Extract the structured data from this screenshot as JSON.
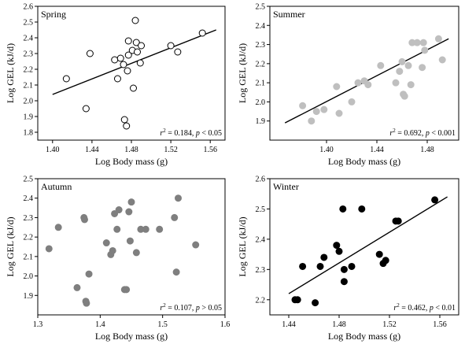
{
  "chart_data": [
    {
      "type": "scatter",
      "title": "Spring",
      "xlabel": "Log Body mass (g)",
      "ylabel": "Log GEL (kJ/d)",
      "xlim": [
        1.385,
        1.575
      ],
      "ylim": [
        1.75,
        2.6
      ],
      "xticks": [
        "1.40",
        "1.44",
        "1.48",
        "1.52",
        "1.56"
      ],
      "yticks": [
        "1.8",
        "1.9",
        "2.0",
        "2.1",
        "2.2",
        "2.3",
        "2.4",
        "2.5",
        "2.6"
      ],
      "marker": {
        "fill": "#ffffff",
        "stroke": "#000000"
      },
      "points": [
        [
          1.414,
          2.14
        ],
        [
          1.434,
          1.95
        ],
        [
          1.438,
          2.3
        ],
        [
          1.463,
          2.26
        ],
        [
          1.466,
          2.14
        ],
        [
          1.469,
          2.27
        ],
        [
          1.472,
          2.23
        ],
        [
          1.473,
          1.88
        ],
        [
          1.475,
          1.84
        ],
        [
          1.476,
          2.19
        ],
        [
          1.477,
          2.29
        ],
        [
          1.477,
          2.38
        ],
        [
          1.481,
          2.32
        ],
        [
          1.482,
          2.08
        ],
        [
          1.484,
          2.51
        ],
        [
          1.485,
          2.37
        ],
        [
          1.486,
          2.31
        ],
        [
          1.489,
          2.24
        ],
        [
          1.49,
          2.35
        ],
        [
          1.52,
          2.35
        ],
        [
          1.527,
          2.31
        ],
        [
          1.552,
          2.43
        ]
      ],
      "trend": [
        [
          1.4,
          2.04
        ],
        [
          1.566,
          2.45
        ]
      ],
      "stat": {
        "r2": "0.184",
        "p": "< 0.05"
      }
    },
    {
      "type": "scatter",
      "title": "Summer",
      "xlabel": "Log Body mass (g)",
      "ylabel": "Log GEL (kJ/d)",
      "xlim": [
        1.355,
        1.505
      ],
      "ylim": [
        1.8,
        2.5
      ],
      "xticks": [
        "1.40",
        "1.44",
        "1.48"
      ],
      "yticks": [
        "1.9",
        "2.0",
        "2.1",
        "2.2",
        "2.3",
        "2.4",
        "2.5"
      ],
      "marker": {
        "fill": "#bfbfbf",
        "stroke": "#bfbfbf"
      },
      "points": [
        [
          1.381,
          1.98
        ],
        [
          1.388,
          1.9
        ],
        [
          1.392,
          1.95
        ],
        [
          1.398,
          1.96
        ],
        [
          1.408,
          2.08
        ],
        [
          1.41,
          1.94
        ],
        [
          1.42,
          2.0
        ],
        [
          1.425,
          2.1
        ],
        [
          1.43,
          2.11
        ],
        [
          1.433,
          2.09
        ],
        [
          1.443,
          2.19
        ],
        [
          1.455,
          2.1
        ],
        [
          1.458,
          2.16
        ],
        [
          1.46,
          2.21
        ],
        [
          1.461,
          2.04
        ],
        [
          1.462,
          2.03
        ],
        [
          1.465,
          2.19
        ],
        [
          1.467,
          2.09
        ],
        [
          1.468,
          2.31
        ],
        [
          1.472,
          2.31
        ],
        [
          1.476,
          2.18
        ],
        [
          1.477,
          2.31
        ],
        [
          1.478,
          2.27
        ],
        [
          1.489,
          2.33
        ],
        [
          1.492,
          2.22
        ]
      ],
      "trend": [
        [
          1.367,
          1.89
        ],
        [
          1.497,
          2.33
        ]
      ],
      "stat": {
        "r2": "0.692",
        "p": "< 0.001"
      }
    },
    {
      "type": "scatter",
      "title": "Autumn",
      "xlabel": "Log Body mass (g)",
      "ylabel": "Log GEL (kJ/d)",
      "xlim": [
        1.3,
        1.6
      ],
      "ylim": [
        1.8,
        2.5
      ],
      "xticks": [
        "1.3",
        "1.4",
        "1.5",
        "1.6"
      ],
      "yticks": [
        "1.9",
        "2.0",
        "2.1",
        "2.2",
        "2.3",
        "2.4",
        "2.5"
      ],
      "marker": {
        "fill": "#7f7f7f",
        "stroke": "#7f7f7f"
      },
      "points": [
        [
          1.318,
          2.14
        ],
        [
          1.333,
          2.25
        ],
        [
          1.363,
          1.94
        ],
        [
          1.374,
          2.3
        ],
        [
          1.375,
          2.29
        ],
        [
          1.377,
          1.87
        ],
        [
          1.378,
          1.86
        ],
        [
          1.382,
          2.01
        ],
        [
          1.41,
          2.17
        ],
        [
          1.417,
          2.11
        ],
        [
          1.42,
          2.13
        ],
        [
          1.423,
          2.32
        ],
        [
          1.427,
          2.24
        ],
        [
          1.43,
          2.34
        ],
        [
          1.439,
          1.93
        ],
        [
          1.442,
          1.93
        ],
        [
          1.446,
          2.33
        ],
        [
          1.448,
          2.18
        ],
        [
          1.45,
          2.38
        ],
        [
          1.458,
          2.12
        ],
        [
          1.465,
          2.24
        ],
        [
          1.473,
          2.24
        ],
        [
          1.495,
          2.24
        ],
        [
          1.519,
          2.3
        ],
        [
          1.522,
          2.02
        ],
        [
          1.525,
          2.4
        ],
        [
          1.553,
          2.16
        ]
      ],
      "stat": {
        "r2": "0.107",
        "p": "> 0.05"
      }
    },
    {
      "type": "scatter",
      "title": "Winter",
      "xlabel": "Log Body mass (g)",
      "ylabel": "Log GEL (kJ/d)",
      "xlim": [
        1.425,
        1.575
      ],
      "ylim": [
        2.15,
        2.6
      ],
      "xticks": [
        "1.44",
        "1.48",
        "1.52",
        "1.56"
      ],
      "yticks": [
        "2.2",
        "2.3",
        "2.4",
        "2.5",
        "2.6"
      ],
      "marker": {
        "fill": "#000000",
        "stroke": "#000000"
      },
      "points": [
        [
          1.445,
          2.2
        ],
        [
          1.447,
          2.2
        ],
        [
          1.451,
          2.31
        ],
        [
          1.461,
          2.19
        ],
        [
          1.465,
          2.31
        ],
        [
          1.468,
          2.34
        ],
        [
          1.478,
          2.38
        ],
        [
          1.48,
          2.36
        ],
        [
          1.483,
          2.5
        ],
        [
          1.484,
          2.26
        ],
        [
          1.484,
          2.3
        ],
        [
          1.49,
          2.31
        ],
        [
          1.498,
          2.5
        ],
        [
          1.512,
          2.35
        ],
        [
          1.515,
          2.32
        ],
        [
          1.517,
          2.33
        ],
        [
          1.525,
          2.46
        ],
        [
          1.527,
          2.46
        ],
        [
          1.556,
          2.53
        ]
      ],
      "trend": [
        [
          1.44,
          2.22
        ],
        [
          1.566,
          2.54
        ]
      ],
      "stat": {
        "r2": "0.462",
        "p": "< 0.01"
      }
    }
  ]
}
